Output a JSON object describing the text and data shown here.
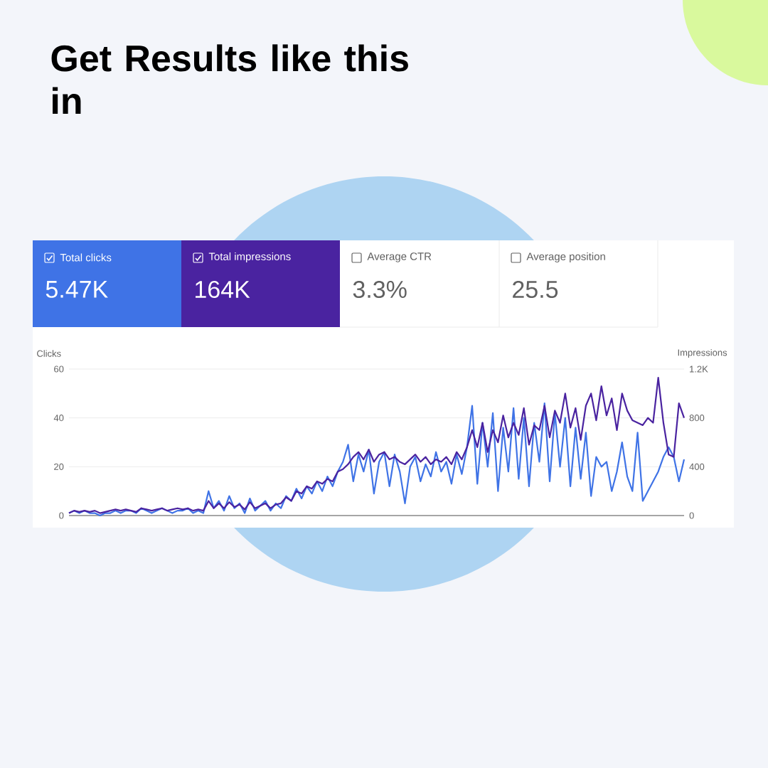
{
  "chart_data": {
    "type": "line",
    "title": "Get Results like this in",
    "annotations": [
      "Total clicks",
      "5.47K",
      "Total impressions",
      "164K",
      "Average CTR",
      "3.3%",
      "Average position",
      "25.5"
    ],
    "ylabel": "Clicks",
    "y2label": "Impressions",
    "categories": [
      null,
      null,
      null,
      null,
      null,
      null,
      null,
      null,
      null,
      null,
      null,
      null,
      null,
      null,
      null,
      null,
      null,
      null,
      null,
      null,
      null,
      null,
      null,
      null,
      null,
      null,
      null,
      null,
      null,
      null,
      null,
      null,
      null,
      null,
      null,
      null,
      null,
      null,
      null,
      null,
      null,
      null,
      null,
      null,
      null,
      null,
      null,
      null,
      null,
      null,
      null,
      null,
      null,
      null,
      null,
      null,
      null,
      null,
      null,
      null,
      null,
      null,
      null,
      null,
      null,
      null,
      null,
      null,
      null,
      null,
      null,
      null,
      null,
      null,
      null,
      null,
      null,
      null,
      null,
      null,
      null,
      null,
      null,
      null,
      null,
      null,
      null,
      null,
      null,
      null,
      null,
      null,
      null,
      null,
      null,
      null,
      null,
      null,
      null,
      null,
      null,
      null,
      null,
      null,
      null,
      null,
      null,
      null,
      null,
      null,
      null,
      null,
      null,
      null,
      null,
      null,
      null,
      null,
      null,
      null
    ],
    "series": [
      {
        "axis": "y2",
        "color": "#4a23a0",
        "values": [
          20,
          40,
          30,
          40,
          30,
          40,
          20,
          30,
          40,
          50,
          40,
          50,
          40,
          30,
          60,
          50,
          40,
          50,
          60,
          40,
          50,
          60,
          50,
          60,
          40,
          50,
          40,
          120,
          60,
          100,
          60,
          110,
          70,
          90,
          50,
          110,
          60,
          80,
          100,
          60,
          90,
          100,
          150,
          120,
          200,
          180,
          240,
          220,
          280,
          260,
          300,
          280,
          360,
          380,
          420,
          480,
          520,
          460,
          540,
          440,
          500,
          520,
          460,
          480,
          440,
          420,
          460,
          500,
          440,
          480,
          420,
          460,
          440,
          480,
          420,
          520,
          460,
          560,
          700,
          560,
          760,
          520,
          700,
          600,
          820,
          640,
          760,
          660,
          880,
          580,
          740,
          700,
          900,
          640,
          860,
          760,
          1000,
          720,
          880,
          620,
          900,
          1000,
          780,
          1060,
          820,
          960,
          700,
          1000,
          860,
          780,
          760,
          740,
          800,
          760,
          1130,
          760,
          500,
          480,
          920,
          800
        ]
      },
      {
        "color": "#3f73e6",
        "values": [
          1,
          2,
          1,
          2,
          1,
          1,
          0,
          1,
          1,
          2,
          1,
          2,
          2,
          1,
          3,
          2,
          1,
          2,
          3,
          2,
          1,
          2,
          2,
          3,
          1,
          2,
          1,
          10,
          3,
          6,
          2,
          8,
          3,
          5,
          1,
          7,
          2,
          4,
          6,
          2,
          5,
          3,
          8,
          6,
          11,
          7,
          12,
          9,
          14,
          10,
          16,
          12,
          18,
          22,
          29,
          14,
          25,
          18,
          27,
          9,
          22,
          26,
          12,
          25,
          18,
          5,
          20,
          24,
          14,
          21,
          16,
          26,
          18,
          22,
          13,
          25,
          17,
          28,
          45,
          13,
          38,
          20,
          42,
          10,
          36,
          18,
          44,
          15,
          40,
          12,
          38,
          22,
          46,
          14,
          42,
          20,
          40,
          12,
          36,
          15,
          34,
          8,
          24,
          20,
          22,
          10,
          18,
          30,
          16,
          10,
          34,
          6,
          10,
          14,
          18,
          24,
          28,
          24,
          14,
          23
        ]
      }
    ],
    "ylim": [
      0,
      60
    ],
    "yticks": [
      0,
      20,
      40,
      60
    ],
    "y2lim": [
      0,
      1200
    ],
    "y2ticks": [
      0,
      400,
      800,
      {
        "value": 1200,
        "label": "1.2K"
      }
    ],
    "grid": "y",
    "legend": false,
    "marker": "none",
    "line_style": "solid"
  }
}
